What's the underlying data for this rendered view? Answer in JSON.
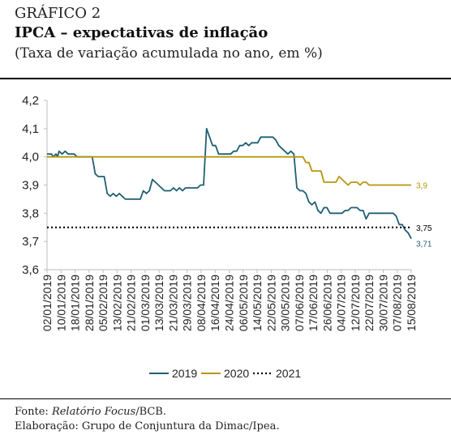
{
  "header": {
    "label": "GRÁFICO 2",
    "title": "IPCA – expectativas de inflação",
    "subtitle": "(Taxa de variação acumulada no ano, em %)"
  },
  "footer": {
    "source_prefix": "Fonte: ",
    "source_italic": "Relatório Focus",
    "source_suffix": "/BCB.",
    "credits": "Elaboração: Grupo de Conjuntura da Dimac/Ipea."
  },
  "colors": {
    "s2019": "#1f5f73",
    "s2020": "#b8960e",
    "s2021": "#000000"
  },
  "chart_data": {
    "type": "line",
    "x_tick_labels": [
      "02/01/2019",
      "10/01/2019",
      "18/01/2019",
      "28/01/2019",
      "05/02/2019",
      "13/02/2019",
      "21/02/2019",
      "01/03/2019",
      "13/03/2019",
      "21/03/2019",
      "29/03/2019",
      "08/04/2019",
      "16/04/2019",
      "24/04/2019",
      "06/05/2019",
      "14/05/2019",
      "22/05/2019",
      "30/05/2019",
      "07/06/2019",
      "17/06/2019",
      "26/06/2019",
      "04/07/2019",
      "12/07/2019",
      "22/07/2019",
      "30/07/2019",
      "07/08/2019",
      "15/08/2019"
    ],
    "y_ticks": [
      "3,6",
      "3,7",
      "3,8",
      "3,9",
      "4,0",
      "4,1",
      "4,2"
    ],
    "ylim": [
      3.6,
      4.2
    ],
    "legend_position": "bottom",
    "annotations": [
      {
        "text": "3,9",
        "series": "2020",
        "value": 3.9
      },
      {
        "text": "3,75",
        "series": "2021",
        "value": 3.75
      },
      {
        "text": "3,71",
        "series": "2019",
        "value": 3.71
      }
    ],
    "series": [
      {
        "name": "2019",
        "points": [
          [
            0,
            4.01
          ],
          [
            1.5,
            4.01
          ],
          [
            2,
            4.0
          ],
          [
            3,
            4.01
          ],
          [
            3.5,
            4.0
          ],
          [
            4,
            4.02
          ],
          [
            5,
            4.01
          ],
          [
            6,
            4.02
          ],
          [
            7,
            4.01
          ],
          [
            8,
            4.01
          ],
          [
            9,
            4.01
          ],
          [
            10,
            4.0
          ],
          [
            15,
            4.0
          ],
          [
            16,
            3.94
          ],
          [
            17,
            3.93
          ],
          [
            19,
            3.93
          ],
          [
            20,
            3.87
          ],
          [
            21,
            3.86
          ],
          [
            22,
            3.87
          ],
          [
            23,
            3.86
          ],
          [
            24,
            3.87
          ],
          [
            25,
            3.86
          ],
          [
            26,
            3.85
          ],
          [
            30,
            3.85
          ],
          [
            31,
            3.85
          ],
          [
            32,
            3.88
          ],
          [
            33,
            3.87
          ],
          [
            34,
            3.88
          ],
          [
            35,
            3.92
          ],
          [
            36,
            3.91
          ],
          [
            38,
            3.89
          ],
          [
            39,
            3.88
          ],
          [
            41,
            3.88
          ],
          [
            42,
            3.89
          ],
          [
            43,
            3.88
          ],
          [
            44,
            3.89
          ],
          [
            45,
            3.88
          ],
          [
            46,
            3.89
          ],
          [
            50,
            3.89
          ],
          [
            51,
            3.9
          ],
          [
            52,
            3.9
          ],
          [
            53,
            4.1
          ],
          [
            54,
            4.07
          ],
          [
            55,
            4.04
          ],
          [
            56,
            4.04
          ],
          [
            57,
            4.01
          ],
          [
            61,
            4.01
          ],
          [
            62,
            4.02
          ],
          [
            63,
            4.02
          ],
          [
            64,
            4.04
          ],
          [
            65,
            4.04
          ],
          [
            66,
            4.05
          ],
          [
            67,
            4.04
          ],
          [
            68,
            4.05
          ],
          [
            70,
            4.05
          ],
          [
            71,
            4.07
          ],
          [
            75,
            4.07
          ],
          [
            76,
            4.06
          ],
          [
            77,
            4.04
          ],
          [
            78,
            4.03
          ],
          [
            79,
            4.02
          ],
          [
            80,
            4.01
          ],
          [
            81,
            4.02
          ],
          [
            82,
            4.01
          ],
          [
            83,
            3.89
          ],
          [
            84,
            3.88
          ],
          [
            85,
            3.88
          ],
          [
            86,
            3.87
          ],
          [
            87,
            3.84
          ],
          [
            88,
            3.83
          ],
          [
            89,
            3.84
          ],
          [
            90,
            3.81
          ],
          [
            91,
            3.8
          ],
          [
            92,
            3.82
          ],
          [
            93,
            3.82
          ],
          [
            94,
            3.8
          ],
          [
            98,
            3.8
          ],
          [
            99,
            3.81
          ],
          [
            100,
            3.81
          ],
          [
            101,
            3.82
          ],
          [
            103,
            3.82
          ],
          [
            104,
            3.81
          ],
          [
            105,
            3.81
          ],
          [
            106,
            3.78
          ],
          [
            107,
            3.8
          ],
          [
            115,
            3.8
          ],
          [
            116,
            3.79
          ],
          [
            117,
            3.76
          ],
          [
            118,
            3.76
          ],
          [
            119,
            3.74
          ],
          [
            120,
            3.73
          ],
          [
            121,
            3.71
          ]
        ]
      },
      {
        "name": "2020",
        "points": [
          [
            0,
            4.0
          ],
          [
            85,
            4.0
          ],
          [
            86,
            3.98
          ],
          [
            87,
            3.98
          ],
          [
            88,
            3.95
          ],
          [
            91,
            3.95
          ],
          [
            92,
            3.91
          ],
          [
            96,
            3.91
          ],
          [
            97,
            3.93
          ],
          [
            98,
            3.92
          ],
          [
            99,
            3.91
          ],
          [
            100,
            3.9
          ],
          [
            101,
            3.91
          ],
          [
            103,
            3.91
          ],
          [
            104,
            3.9
          ],
          [
            105,
            3.91
          ],
          [
            106,
            3.91
          ],
          [
            107,
            3.9
          ],
          [
            121,
            3.9
          ]
        ]
      },
      {
        "name": "2021",
        "points": [
          [
            0,
            3.75
          ],
          [
            121,
            3.75
          ]
        ]
      }
    ]
  }
}
